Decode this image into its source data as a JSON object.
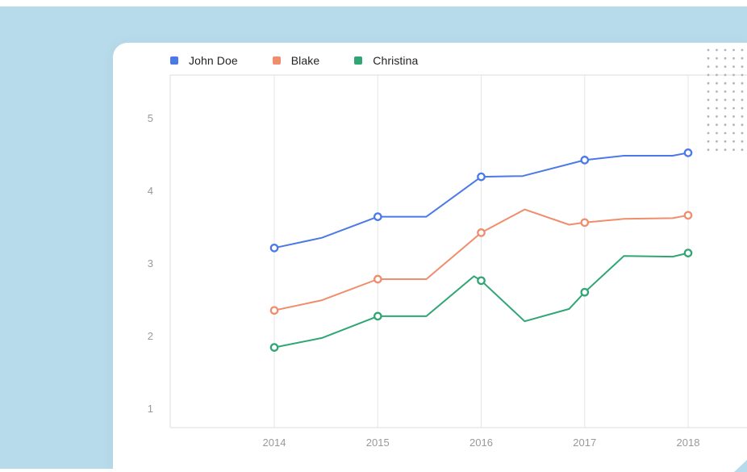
{
  "page": {
    "background_color": "#ffffff",
    "panel_color": "#b8dbeb"
  },
  "legend": {
    "items": [
      {
        "label": "John Doe",
        "color": "#4b79e8"
      },
      {
        "label": "Blake",
        "color": "#ef8d6d"
      },
      {
        "label": "Christina",
        "color": "#2fa674"
      }
    ]
  },
  "chart_data": {
    "type": "line",
    "title": "",
    "xlabel": "",
    "ylabel": "",
    "x_ticks": [
      "2014",
      "2015",
      "2016",
      "2017",
      "2018"
    ],
    "y_ticks": [
      "1",
      "2",
      "3",
      "4",
      "5"
    ],
    "x_range": [
      2014,
      2018
    ],
    "y_range_visible": [
      0.76,
      5.6
    ],
    "grid": "vertical-gridlines-only",
    "legend_position": "top-left",
    "series": [
      {
        "name": "John Doe",
        "color": "#4b79e8",
        "points": [
          [
            2014,
            3.23
          ],
          [
            2014.46,
            3.37
          ],
          [
            2015,
            3.66
          ],
          [
            2015.47,
            3.66
          ],
          [
            2016,
            4.21
          ],
          [
            2016.4,
            4.22
          ],
          [
            2017,
            4.44
          ],
          [
            2017.38,
            4.5
          ],
          [
            2017.85,
            4.5
          ],
          [
            2018,
            4.54
          ]
        ],
        "markers": [
          [
            2014,
            3.23
          ],
          [
            2015,
            3.66
          ],
          [
            2016,
            4.21
          ],
          [
            2017,
            4.44
          ],
          [
            2018,
            4.54
          ]
        ]
      },
      {
        "name": "Blake",
        "color": "#ef8d6d",
        "points": [
          [
            2014,
            2.37
          ],
          [
            2014.46,
            2.51
          ],
          [
            2015,
            2.8
          ],
          [
            2015.47,
            2.8
          ],
          [
            2016,
            3.44
          ],
          [
            2016.42,
            3.76
          ],
          [
            2016.85,
            3.55
          ],
          [
            2017,
            3.58
          ],
          [
            2017.38,
            3.63
          ],
          [
            2017.85,
            3.64
          ],
          [
            2018,
            3.68
          ]
        ],
        "markers": [
          [
            2014,
            2.37
          ],
          [
            2015,
            2.8
          ],
          [
            2016,
            3.44
          ],
          [
            2017,
            3.58
          ],
          [
            2018,
            3.68
          ]
        ]
      },
      {
        "name": "Christina",
        "color": "#2fa674",
        "points": [
          [
            2014,
            1.86
          ],
          [
            2014.46,
            1.99
          ],
          [
            2015,
            2.29
          ],
          [
            2015.47,
            2.29
          ],
          [
            2015.93,
            2.84
          ],
          [
            2016,
            2.78
          ],
          [
            2016.42,
            2.22
          ],
          [
            2016.85,
            2.39
          ],
          [
            2017,
            2.62
          ],
          [
            2017.38,
            3.12
          ],
          [
            2017.85,
            3.11
          ],
          [
            2018,
            3.16
          ]
        ],
        "markers": [
          [
            2014,
            1.86
          ],
          [
            2015,
            2.29
          ],
          [
            2016,
            2.78
          ],
          [
            2017,
            2.62
          ],
          [
            2018,
            3.16
          ]
        ]
      }
    ],
    "style": {
      "grid_color": "#e7e7e7",
      "border_color": "#dcdcdc",
      "axis_label_color": "#97999b",
      "legend_text_color": "#1f2124",
      "marker_fill": "#ffffff",
      "line_width": 2,
      "marker_radius": 4.2
    }
  },
  "decor": {
    "dots": {
      "rows": 13,
      "cols": 5,
      "color": "#b3b3b3"
    }
  }
}
